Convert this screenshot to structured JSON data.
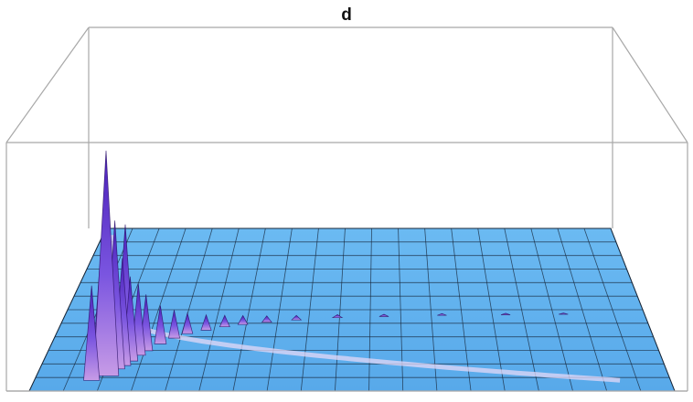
{
  "chart_data": {
    "type": "surface",
    "title": "d",
    "xlabel": "",
    "ylabel": "",
    "zlabel": "",
    "axes_shown": false,
    "grid": true,
    "grid_divisions": {
      "x": 19,
      "y": 12
    },
    "surface_color": "#5fb3f0",
    "peak_color": "#6a2bd6",
    "box_color": "#a8a8a8",
    "peaks": [
      {
        "x": 0.09,
        "y": 0.62,
        "z": 0.37
      },
      {
        "x": 0.1,
        "y": 0.55,
        "z": 0.48
      },
      {
        "x": 0.11,
        "y": 0.58,
        "z": 0.88
      },
      {
        "x": 0.12,
        "y": 0.52,
        "z": 0.58
      },
      {
        "x": 0.13,
        "y": 0.49,
        "z": 0.42
      },
      {
        "x": 0.13,
        "y": 0.42,
        "z": 0.52
      },
      {
        "x": 0.14,
        "y": 0.45,
        "z": 0.33
      },
      {
        "x": 0.15,
        "y": 0.4,
        "z": 0.28
      },
      {
        "x": 0.16,
        "y": 0.36,
        "z": 0.22
      },
      {
        "x": 0.18,
        "y": 0.3,
        "z": 0.15
      },
      {
        "x": 0.2,
        "y": 0.25,
        "z": 0.11
      },
      {
        "x": 0.22,
        "y": 0.21,
        "z": 0.08
      },
      {
        "x": 0.25,
        "y": 0.18,
        "z": 0.06
      },
      {
        "x": 0.28,
        "y": 0.15,
        "z": 0.045
      },
      {
        "x": 0.31,
        "y": 0.13,
        "z": 0.035
      },
      {
        "x": 0.35,
        "y": 0.11,
        "z": 0.025
      },
      {
        "x": 0.4,
        "y": 0.09,
        "z": 0.018
      },
      {
        "x": 0.47,
        "y": 0.07,
        "z": 0.012
      },
      {
        "x": 0.55,
        "y": 0.06,
        "z": 0.009
      },
      {
        "x": 0.65,
        "y": 0.05,
        "z": 0.007
      },
      {
        "x": 0.76,
        "y": 0.045,
        "z": 0.006
      },
      {
        "x": 0.86,
        "y": 0.04,
        "z": 0.005
      }
    ]
  }
}
